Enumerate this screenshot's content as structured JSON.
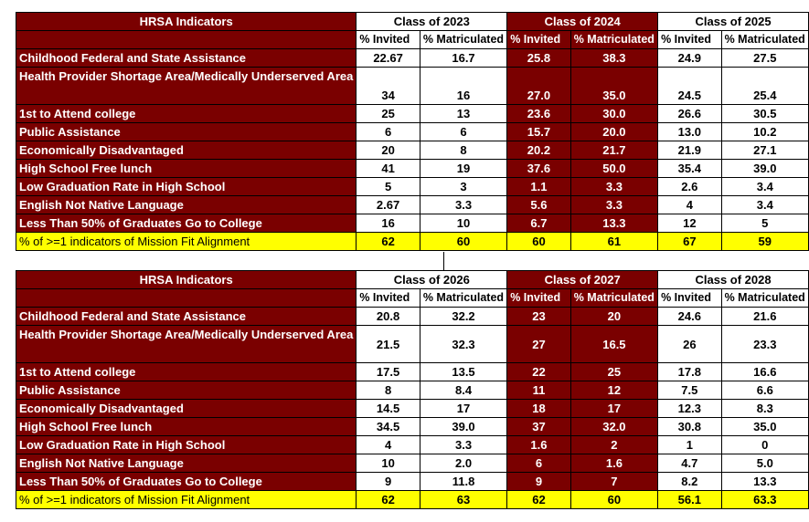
{
  "tables": [
    {
      "header": "HRSA Indicators",
      "classes": [
        {
          "title": "Class of 2023"
        },
        {
          "title": "Class of 2024"
        },
        {
          "title": "Class of 2025"
        }
      ],
      "subheaders": [
        "% Invited",
        "% Matriculated",
        "% Invited",
        "% Matriculated",
        "% Invited",
        "% Matriculated"
      ],
      "rows": [
        {
          "label": "Childhood Federal and State Assistance",
          "values": [
            "22.67",
            "16.7",
            "25.8",
            "38.3",
            "24.9",
            "27.5"
          ]
        },
        {
          "label": "Health Provider Shortage Area/Medically Underserved Area",
          "values": [
            "34",
            "16",
            "27.0",
            "35.0",
            "24.5",
            "25.4"
          ]
        },
        {
          "label": "1st to Attend college",
          "values": [
            "25",
            "13",
            "23.6",
            "30.0",
            "26.6",
            "30.5"
          ]
        },
        {
          "label": "Public Assistance",
          "values": [
            "6",
            "6",
            "15.7",
            "20.0",
            "13.0",
            "10.2"
          ]
        },
        {
          "label": "Economically Disadvantaged",
          "values": [
            "20",
            "8",
            "20.2",
            "21.7",
            "21.9",
            "27.1"
          ]
        },
        {
          "label": "High School Free lunch",
          "values": [
            "41",
            "19",
            "37.6",
            "50.0",
            "35.4",
            "39.0"
          ]
        },
        {
          "label": "Low Graduation Rate in High School",
          "values": [
            "5",
            "3",
            "1.1",
            "3.3",
            "2.6",
            "3.4"
          ]
        },
        {
          "label": "English Not Native Language",
          "values": [
            "2.67",
            "3.3",
            "5.6",
            "3.3",
            "4",
            "3.4"
          ]
        },
        {
          "label": "Less Than 50% of Graduates Go to College",
          "values": [
            "16",
            "10",
            "6.7",
            "13.3",
            "12",
            "5"
          ]
        }
      ],
      "summary": {
        "label": "% of >=1 indicators of Mission Fit Alignment",
        "values": [
          "62",
          "60",
          "60",
          "61",
          "67",
          "59"
        ]
      }
    },
    {
      "header": "HRSA Indicators",
      "classes": [
        {
          "title": "Class of 2026"
        },
        {
          "title": "Class of 2027"
        },
        {
          "title": "Class of 2028"
        }
      ],
      "subheaders": [
        "% Invited",
        "% Matriculated",
        "% Invited",
        "% Matriculated",
        "% Invited",
        "% Matriculated"
      ],
      "rows": [
        {
          "label": "Childhood Federal and State Assistance",
          "values": [
            "20.8",
            "32.2",
            "23",
            "20",
            "24.6",
            "21.6"
          ]
        },
        {
          "label": "Health Provider Shortage Area/Medically Underserved Area",
          "values": [
            "21.5",
            "32.3",
            "27",
            "16.5",
            "26",
            "23.3"
          ]
        },
        {
          "label": "1st to Attend college",
          "values": [
            "17.5",
            "13.5",
            "22",
            "25",
            "17.8",
            "16.6"
          ]
        },
        {
          "label": "Public Assistance",
          "values": [
            "8",
            "8.4",
            "11",
            "12",
            "7.5",
            "6.6"
          ]
        },
        {
          "label": "Economically Disadvantaged",
          "values": [
            "14.5",
            "17",
            "18",
            "17",
            "12.3",
            "8.3"
          ]
        },
        {
          "label": "High School Free lunch",
          "values": [
            "34.5",
            "39.0",
            "37",
            "32.0",
            "30.8",
            "35.0"
          ]
        },
        {
          "label": "Low Graduation Rate in High School",
          "values": [
            "4",
            "3.3",
            "1.6",
            "2",
            "1",
            "0"
          ]
        },
        {
          "label": "English Not Native Language",
          "values": [
            "10",
            "2.0",
            "6",
            "1.6",
            "4.7",
            "5.0"
          ]
        },
        {
          "label": "Less Than 50% of Graduates Go to College",
          "values": [
            "9",
            "11.8",
            "9",
            "7",
            "8.2",
            "13.3"
          ]
        }
      ],
      "summary": {
        "label": "% of >=1 indicators of Mission Fit Alignment",
        "values": [
          "62",
          "63",
          "62",
          "60",
          "56.1",
          "63.3"
        ]
      }
    }
  ],
  "colors": {
    "maroon": "#7a0000",
    "highlight": "#ffff00",
    "text_light": "#ffffff"
  }
}
